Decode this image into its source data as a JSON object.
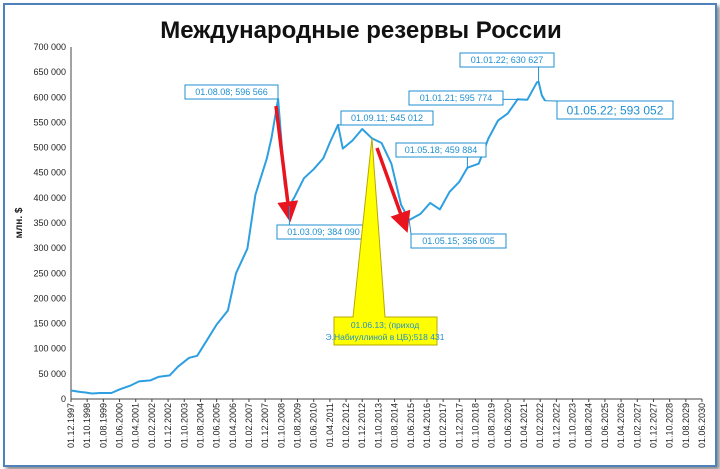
{
  "chart_data": {
    "type": "line",
    "title": "Международные резервы России",
    "ylabel": "млн. $",
    "xlabel": "",
    "ylim": [
      0,
      700000
    ],
    "yticks": [
      "0",
      "50 000",
      "100 000",
      "150 000",
      "200 000",
      "250 000",
      "300 000",
      "350 000",
      "400 000",
      "450 000",
      "500 000",
      "550 000",
      "600 000",
      "650 000",
      "700 000"
    ],
    "xticks": [
      "01.12.1997",
      "01.10.1998",
      "01.08.1999",
      "01.06.2000",
      "01.04.2001",
      "01.02.2002",
      "01.12.2002",
      "01.10.2003",
      "01.08.2004",
      "01.06.2005",
      "01.04.2006",
      "01.02.2007",
      "01.12.2007",
      "01.10.2008",
      "01.08.2009",
      "01.06.2010",
      "01.04.2011",
      "01.02.2012",
      "01.12.2012",
      "01.10.2013",
      "01.08.2014",
      "01.06.2015",
      "01.04.2016",
      "01.02.2017",
      "01.12.2017",
      "01.10.2018",
      "01.08.2019",
      "01.06.2020",
      "01.04.2021",
      "01.02.2022",
      "01.12.2022",
      "01.10.2023",
      "01.08.2024",
      "01.06.2025",
      "01.04.2026",
      "01.02.2027",
      "01.12.2027",
      "01.10.2028",
      "01.08.2029",
      "01.06.2030"
    ],
    "grid": false,
    "legend": "none",
    "line_color": "#2e9fe0",
    "arrow_color": "#e8141e",
    "callout_color": "#ffff00",
    "series": [
      {
        "x": [
          "1997-12",
          "1998-06",
          "1998-09",
          "1999-01",
          "1999-06",
          "2000-01",
          "2000-06",
          "2001-01",
          "2001-06",
          "2002-01",
          "2002-06",
          "2003-01",
          "2003-06",
          "2004-01",
          "2004-06",
          "2005-01",
          "2005-06",
          "2006-01",
          "2006-06",
          "2007-01",
          "2007-06",
          "2008-01",
          "2008-04",
          "2008-08",
          "2008-10",
          "2008-12",
          "2009-03",
          "2009-06",
          "2009-12",
          "2010-06",
          "2010-12",
          "2011-04",
          "2011-09",
          "2011-12",
          "2012-06",
          "2012-12",
          "2013-06",
          "2013-12",
          "2014-06",
          "2014-12",
          "2015-05",
          "2015-12",
          "2016-06",
          "2016-12",
          "2017-06",
          "2017-12",
          "2018-05",
          "2018-12",
          "2019-06",
          "2019-12",
          "2020-06",
          "2020-12",
          "2021-01",
          "2021-06",
          "2021-12",
          "2022-01",
          "2022-03",
          "2022-05"
        ],
        "y": [
          17000,
          14000,
          13000,
          11000,
          12000,
          12000,
          19000,
          27000,
          35000,
          37000,
          44000,
          47000,
          64000,
          82000,
          86000,
          122000,
          148000,
          176000,
          250000,
          299000,
          406000,
          478000,
          520000,
          596566,
          516000,
          427000,
          384090,
          401000,
          439000,
          457000,
          479000,
          510000,
          545012,
          498000,
          514000,
          537000,
          518431,
          509000,
          468000,
          386000,
          356005,
          368000,
          390000,
          377000,
          412000,
          432000,
          459884,
          468000,
          518000,
          554000,
          568000,
          596000,
          595774,
          595000,
          630000,
          630627,
          604000,
          593052
        ]
      }
    ],
    "annotations": [
      {
        "label": "01.08.08; 596 566",
        "x": "2008-08",
        "y": 596566
      },
      {
        "label": "01.03.09; 384 090",
        "x": "2009-03",
        "y": 384090
      },
      {
        "label": "01.09.11; 545 012",
        "x": "2011-09",
        "y": 545012
      },
      {
        "label": "01.05.15; 356 005",
        "x": "2015-05",
        "y": 356005
      },
      {
        "label": "01.05.18; 459 884",
        "x": "2018-05",
        "y": 459884
      },
      {
        "label": "01.01.21; 595 774",
        "x": "2021-01",
        "y": 595774
      },
      {
        "label": "01.01.22; 630 627",
        "x": "2022-01",
        "y": 630627
      },
      {
        "label": "01.05.22; 593 052",
        "x": "2022-05",
        "y": 593052
      },
      {
        "label": "01.06.13; (приход Э.Набиуллиной в ЦБ);518 431",
        "x": "2013-06",
        "y": 518431
      }
    ]
  }
}
